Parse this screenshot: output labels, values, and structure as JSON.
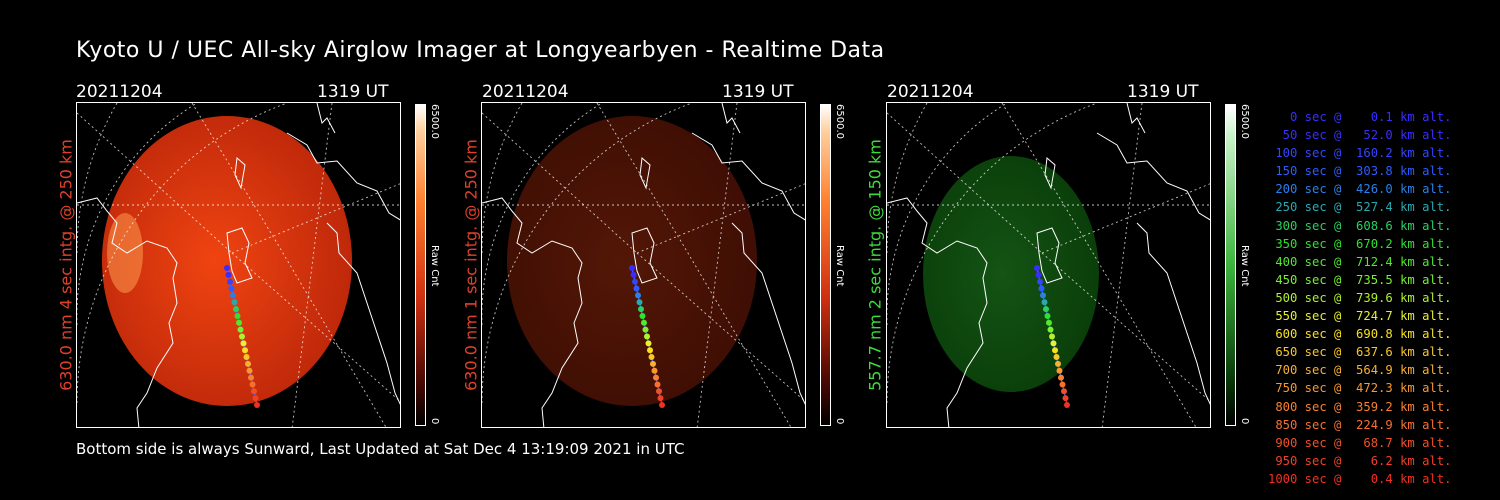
{
  "title": "Kyoto U / UEC All-sky Airglow Imager at Longyearbyen - Realtime Data",
  "footer": "Bottom side is always Sunward, Last Updated at Sat Dec  4 13:19:09 2021 in UTC",
  "panels": [
    {
      "date": "20211204",
      "time": "1319 UT",
      "ylabel": "630.0 nm 4 sec intg. @ 250 km",
      "label_color": "#e0402a",
      "cbar_max": "6500.0",
      "cbar_unit": "Raw Cnt",
      "cbar_min": "0",
      "colormap": "red",
      "brightness": 1.0
    },
    {
      "date": "20211204",
      "time": "1319 UT",
      "ylabel": "630.0 nm 1 sec intg. @ 250 km",
      "label_color": "#e0402a",
      "cbar_max": "6500.0",
      "cbar_unit": "Raw Cnt",
      "cbar_min": "0",
      "colormap": "red",
      "brightness": 0.25
    },
    {
      "date": "20211204",
      "time": "1319 UT",
      "ylabel": "557.7 nm 2 sec intg. @ 150 km",
      "label_color": "#3cdc3c",
      "cbar_max": "6500.0",
      "cbar_unit": "Raw Cnt",
      "cbar_min": "0",
      "colormap": "green",
      "brightness": 0.4
    }
  ],
  "legend": [
    {
      "text": "   0 sec @    0.1 km alt.",
      "color": "#3a2cff"
    },
    {
      "text": "  50 sec @   52.0 km alt.",
      "color": "#3a2cff"
    },
    {
      "text": " 100 sec @  160.2 km alt.",
      "color": "#3344ff"
    },
    {
      "text": " 150 sec @  303.8 km alt.",
      "color": "#2c5cff"
    },
    {
      "text": " 200 sec @  426.0 km alt.",
      "color": "#2a80e8"
    },
    {
      "text": " 250 sec @  527.4 km alt.",
      "color": "#2aa8b0"
    },
    {
      "text": " 300 sec @  608.6 km alt.",
      "color": "#2ad060"
    },
    {
      "text": " 350 sec @  670.2 km alt.",
      "color": "#30e030"
    },
    {
      "text": " 400 sec @  712.4 km alt.",
      "color": "#50e830"
    },
    {
      "text": " 450 sec @  735.5 km alt.",
      "color": "#78f030"
    },
    {
      "text": " 500 sec @  739.6 km alt.",
      "color": "#b0f030"
    },
    {
      "text": " 550 sec @  724.7 km alt.",
      "color": "#e8f030"
    },
    {
      "text": " 600 sec @  690.8 km alt.",
      "color": "#f8e020"
    },
    {
      "text": " 650 sec @  637.6 km alt.",
      "color": "#f8c828"
    },
    {
      "text": " 700 sec @  564.9 km alt.",
      "color": "#f8b030"
    },
    {
      "text": " 750 sec @  472.3 km alt.",
      "color": "#f89830"
    },
    {
      "text": " 800 sec @  359.2 km alt.",
      "color": "#f88030"
    },
    {
      "text": " 850 sec @  224.9 km alt.",
      "color": "#f87030"
    },
    {
      "text": " 900 sec @   68.7 km alt.",
      "color": "#f05028"
    },
    {
      "text": " 950 sec @    6.2 km alt.",
      "color": "#f04028"
    },
    {
      "text": "1000 sec @    0.4 km alt.",
      "color": "#f03020"
    }
  ]
}
